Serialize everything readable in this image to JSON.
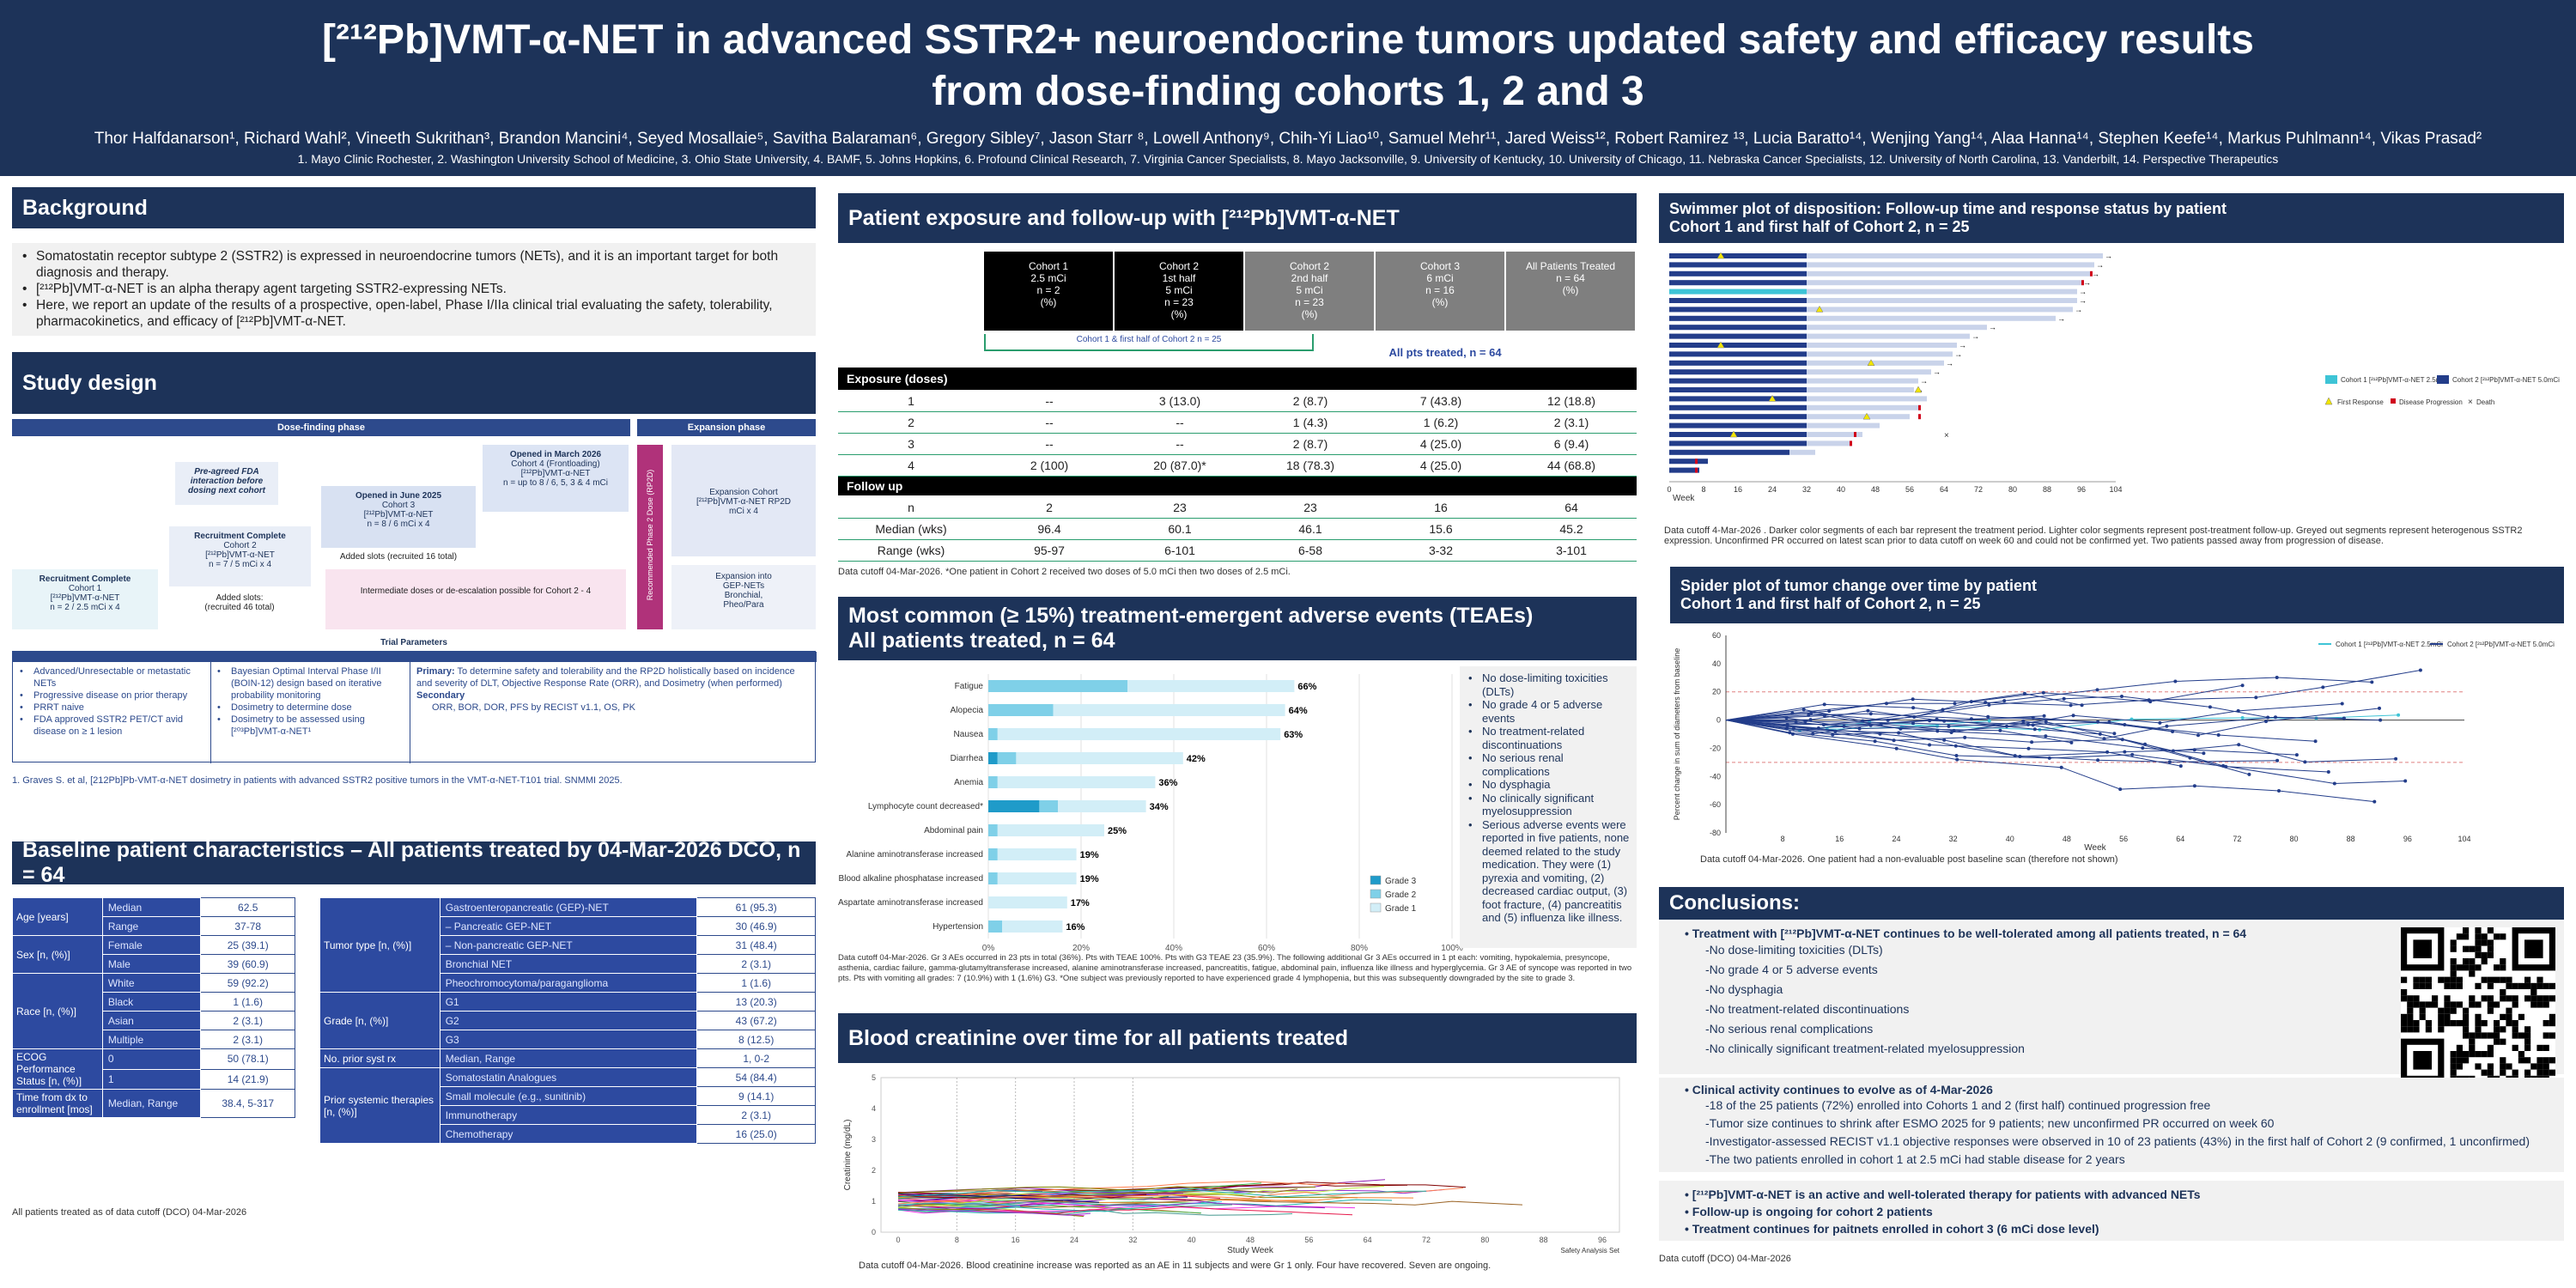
{
  "header": {
    "title_line1": "[²¹²Pb]VMT-α-NET in advanced SSTR2+ neuroendocrine tumors updated safety and efficacy results",
    "title_line2": "from dose-finding cohorts 1, 2 and 3",
    "authors": "Thor Halfdanarson¹, Richard Wahl², Vineeth Sukrithan³, Brandon Mancini⁴, Seyed Mosallaie⁵, Savitha Balaraman⁶, Gregory Sibley⁷, Jason Starr ⁸, Lowell Anthony⁹, Chih-Yi Liao¹⁰, Samuel Mehr¹¹, Jared Weiss¹², Robert Ramirez ¹³, Lucia Baratto¹⁴, Wenjing Yang¹⁴, Alaa Hanna¹⁴, Stephen Keefe¹⁴, Markus Puhlmann¹⁴, Vikas Prasad²",
    "affiliations": "1. Mayo Clinic Rochester, 2. Washington University School of Medicine, 3. Ohio State University, 4. BAMF, 5. Johns Hopkins, 6. Profound Clinical Research, 7. Virginia Cancer Specialists, 8. Mayo Jacksonville, 9. University of Kentucky, 10. University of Chicago, 11. Nebraska Cancer Specialists, 12. University of North Carolina, 13. Vanderbilt, 14. Perspective Therapeutics"
  },
  "background": {
    "title": "Background",
    "bullets": [
      "Somatostatin receptor subtype 2 (SSTR2) is expressed in neuroendocrine tumors (NETs), and it is an important target for both diagnosis and therapy.",
      "[²¹²Pb]VMT-α-NET is an alpha therapy agent targeting SSTR2-expressing NETs.",
      "Here, we report an update of the results of a prospective, open-label, Phase I/IIa clinical trial evaluating the safety, tolerability, pharmacokinetics, and efficacy of [²¹²Pb]VMT-α-NET."
    ]
  },
  "study_design": {
    "title": "Study design",
    "dose_finding": "Dose-finding phase",
    "expansion": "Expansion phase",
    "pre_agreed": "Pre-agreed FDA interaction before dosing next cohort",
    "c1": {
      "h": "Recruitment Complete",
      "l1": "Cohort 1",
      "l2": "[²¹²Pb]VMT-α-NET",
      "l3": "n = 2 / 2.5 mCi x 4"
    },
    "c2": {
      "h": "Recruitment Complete",
      "l1": "Cohort 2",
      "l2": "[²¹²Pb]VMT-α-NET",
      "l3": "n = 7 / 5 mCi x 4",
      "note1": "Added slots:",
      "note2": "(recruited 46 total)"
    },
    "c3": {
      "h": "Opened in June 2025",
      "l1": "Cohort 3",
      "l2": "[²¹²Pb]VMT-α-NET",
      "l3": "n = 8 / 6 mCi x 4",
      "note": "Added slots (recruited 16 total)"
    },
    "c4": {
      "h": "Opened in March 2026",
      "l1": "Cohort 4 (Frontloading)",
      "l2": "[²¹²Pb]VMT-α-NET",
      "l3": "n = up to 8 / 6, 5, 3 & 4 mCi"
    },
    "intermediate": "Intermediate doses or de-escalation possible for Cohort 2 - 4",
    "rp2d": "Recommended Phase 2 Dose (RP2D)",
    "exp_cohort": "Expansion Cohort [²¹²Pb]VMT-α-NET RP2D mCi x 4",
    "exp_into": "Expansion into GEP-NETs Bronchial, Pheo/Para",
    "trial_params": "Trial Parameters",
    "col1": [
      "Advanced/Unresectable or metastatic NETs",
      "Progressive disease on prior therapy",
      "PRRT naive",
      "FDA approved SSTR2 PET/CT avid disease on ≥ 1 lesion"
    ],
    "col2": [
      "Bayesian Optimal Interval Phase I/II (BOIN-12) design based on iterative probability monitoring",
      "Dosimetry to determine dose",
      "Dosimetry to be assessed using [²⁰³Pb]VMT-α-NET¹"
    ],
    "primary_label": "Primary:",
    "primary": "To determine safety and tolerability and the RP2D holistically based on incidence and severity of DLT, Objective Response Rate (ORR), and Dosimetry (when performed)",
    "secondary_label": "Secondary",
    "secondary": "ORR, BOR, DOR, PFS by RECIST v1.1, OS, PK",
    "footnote": "1. Graves S. et al, [212Pb]Pb-VMT-α-NET dosimetry in patients with advanced SSTR2 positive tumors in the VMT-α-NET-T101 trial. SNMMI 2025."
  },
  "baseline": {
    "title": "Baseline patient characteristics – All patients treated by 04-Mar-2026 DCO, n = 64",
    "left": [
      [
        "Age [years]",
        "Median",
        "62.5"
      ],
      [
        "",
        "Range",
        "37-78"
      ],
      [
        "Sex [n, (%)]",
        "Female",
        "25 (39.1)"
      ],
      [
        "",
        "Male",
        "39 (60.9)"
      ],
      [
        "Race [n, (%)]",
        "White",
        "59 (92.2)"
      ],
      [
        "",
        "Black",
        "1 (1.6)"
      ],
      [
        "",
        "Asian",
        "2 (3.1)"
      ],
      [
        "",
        "Multiple",
        "2 (3.1)"
      ],
      [
        "ECOG Performance Status [n, (%)]",
        "0",
        "50 (78.1)"
      ],
      [
        "",
        "1",
        "14 (21.9)"
      ],
      [
        "Time from dx to enrollment [mos]",
        "Median, Range",
        "38.4, 5-317"
      ]
    ],
    "right": [
      [
        "Tumor type [n, (%)]",
        "Gastroenteropancreatic (GEP)-NET",
        "61 (95.3)"
      ],
      [
        "",
        "–   Pancreatic GEP-NET",
        "30 (46.9)"
      ],
      [
        "",
        "–   Non-pancreatic GEP-NET",
        "31 (48.4)"
      ],
      [
        "",
        "Bronchial NET",
        "2 (3.1)"
      ],
      [
        "",
        "Pheochromocytoma/paraganglioma",
        "1 (1.6)"
      ],
      [
        "Grade [n, (%)]",
        "G1",
        "13 (20.3)"
      ],
      [
        "",
        "G2",
        "43 (67.2)"
      ],
      [
        "",
        "G3",
        "8 (12.5)"
      ],
      [
        "No. prior syst rx",
        "Median, Range",
        "1, 0-2"
      ],
      [
        "Prior systemic therapies [n, (%)]",
        "Somatostatin Analogues",
        "54 (84.4)"
      ],
      [
        "",
        "Small molecule (e.g., sunitinib)",
        "9 (14.1)"
      ],
      [
        "",
        "Immunotherapy",
        "2 (3.1)"
      ],
      [
        "",
        "Chemotherapy",
        "16 (25.0)"
      ]
    ],
    "footnote": "All patients treated as of data cutoff (DCO) 04-Mar-2026"
  },
  "exposure": {
    "title": "Patient exposure and follow-up with [²¹²Pb]VMT-α-NET",
    "cols": [
      [
        "Cohort 1",
        "2.5 mCi",
        "n = 2",
        "(%)"
      ],
      [
        "Cohort 2",
        "1st half",
        "5 mCi",
        "n = 23",
        "(%)"
      ],
      [
        "Cohort 2",
        "2nd half",
        "5 mCi",
        "n = 23",
        "(%)"
      ],
      [
        "Cohort 3",
        "6 mCi",
        "n = 16",
        "(%)"
      ],
      [
        "All Patients Treated",
        "n = 64",
        "(%)"
      ]
    ],
    "bracket_left": "Cohort 1 & first half of Cohort 2 n = 25",
    "bracket_right": "All pts treated, n = 64",
    "exposure_label": "Exposure (doses)",
    "rows": [
      [
        "1",
        "--",
        "3 (13.0)",
        "2 (8.7)",
        "7 (43.8)",
        "12 (18.8)"
      ],
      [
        "2",
        "--",
        "--",
        "1 (4.3)",
        "1 (6.2)",
        "2 (3.1)"
      ],
      [
        "3",
        "--",
        "--",
        "2 (8.7)",
        "4 (25.0)",
        "6 (9.4)"
      ],
      [
        "4",
        "2 (100)",
        "20 (87.0)*",
        "18 (78.3)",
        "4 (25.0)",
        "44 (68.8)"
      ]
    ],
    "followup_label": "Follow up",
    "frows": [
      [
        "n",
        "2",
        "23",
        "23",
        "16",
        "64"
      ],
      [
        "Median (wks)",
        "96.4",
        "60.1",
        "46.1",
        "15.6",
        "45.2"
      ],
      [
        "Range (wks)",
        "95-97",
        "6-101",
        "6-58",
        "3-32",
        "3-101"
      ]
    ],
    "footnote": "Data cutoff 04-Mar-2026. *One patient in Cohort 2 received two doses of 5.0 mCi then two doses of 2.5 mCi."
  },
  "teae": {
    "title1": "Most common (≥ 15%) treatment-emergent adverse events (TEAEs)",
    "title2": "All patients treated, n = 64",
    "chart_data": {
      "type": "bar",
      "orientation": "horizontal",
      "stacked": true,
      "categories": [
        "Fatigue",
        "Alopecia",
        "Nausea",
        "Diarrhea",
        "Anemia",
        "Lymphocyte count decreased*",
        "Abdominal pain",
        "Alanine aminotransferase increased",
        "Blood alkaline phosphatase increased",
        "Aspartate aminotransferase increased",
        "Hypertension"
      ],
      "totals_label": [
        "66%",
        "64%",
        "63%",
        "42%",
        "36%",
        "34%",
        "25%",
        "19%",
        "19%",
        "17%",
        "16%"
      ],
      "series": [
        {
          "name": "Grade 3",
          "color": "#1f9bc9",
          "values": [
            0,
            0,
            0,
            2,
            0,
            11,
            0,
            0,
            0,
            0,
            0
          ]
        },
        {
          "name": "Grade 2",
          "color": "#7fd0e8",
          "values": [
            30,
            14,
            2,
            4,
            2,
            4,
            2,
            2,
            2,
            0,
            3
          ]
        },
        {
          "name": "Grade 1",
          "color": "#d2eef7",
          "values": [
            36,
            50,
            61,
            36,
            34,
            19,
            23,
            17,
            17,
            17,
            13
          ]
        }
      ],
      "xticks": [
        "0%",
        "20%",
        "40%",
        "60%",
        "80%",
        "100%"
      ],
      "xlim": [
        0,
        100
      ]
    },
    "bullets": [
      "No dose-limiting toxicities (DLTs)",
      "No grade 4 or 5 adverse events",
      "No treatment-related discontinuations",
      "No serious renal complications",
      "No dysphagia",
      "No clinically significant myelosuppression",
      "Serious adverse events were reported in five patients, none deemed related to the study medication. They were (1) pyrexia and vomiting, (2) decreased cardiac output, (3) foot fracture, (4) pancreatitis and (5) influenza like illness."
    ],
    "footnote": "Data cutoff 04-Mar-2026. Gr 3 AEs occurred in 23 pts in total (36%). Pts with TEAE 100%. Pts with G3 TEAE 23 (35.9%). The following additional Gr 3 AEs occurred in 1 pt each: vomiting, hypokalemia, presyncope, asthenia, cardiac failure, gamma-glutamyltransferase increased, alanine aminotransferase increased, pancreatitis, fatigue, abdominal pain, influenza like illness and hyperglycemia. Gr 3 AE of syncope was reported in two pts. Pts with vomiting all grades: 7 (10.9%) with 1 (1.6%) G3. *One subject was previously reported to have experienced grade 4 lymphopenia, but this was subsequently downgraded by the site to grade 3."
  },
  "creat": {
    "title": "Blood creatinine over time for all patients treated",
    "ylabel": "Creatinine (mg/dL)",
    "xlabel": "Study Week",
    "xticks": [
      "0",
      "8",
      "16",
      "24",
      "32",
      "40",
      "48",
      "56",
      "64",
      "72",
      "80",
      "88",
      "96"
    ],
    "yticks": [
      "0",
      "1",
      "2",
      "3",
      "4",
      "5"
    ],
    "set_label": "Safety Analysis Set",
    "footnote": "Data cutoff 04-Mar-2026. Blood creatinine increase was reported as an AE in 11 subjects and were Gr 1 only.  Four have recovered.  Seven are ongoing."
  },
  "swimmer": {
    "title1": "Swimmer plot of disposition: Follow-up time and response status by patient",
    "title2": "Cohort 1 and first half of Cohort 2, n = 25",
    "chart_data": {
      "type": "bar",
      "orientation": "horizontal",
      "xlabel": "Week",
      "xticks": [
        "0",
        "8",
        "16",
        "24",
        "32",
        "40",
        "48",
        "56",
        "64",
        "72",
        "80",
        "88",
        "96",
        "104"
      ],
      "series": [
        {
          "name": "Cohort 1 [²¹²Pb]VMT-α-NET 2.5mCi",
          "color": "#3ec4d6"
        },
        {
          "name": "Cohort 2 [²¹²Pb]VMT-α-NET 5.0mCi",
          "color": "#233d8a"
        }
      ],
      "treatment": [
        32,
        32,
        32,
        32,
        32,
        32,
        32,
        32,
        32,
        32,
        32,
        32,
        32,
        32,
        32,
        32,
        32,
        32,
        32,
        32,
        32,
        32,
        28,
        9,
        7
      ],
      "total": [
        101,
        99,
        98,
        96,
        95,
        95,
        94,
        90,
        74,
        70,
        67,
        66,
        64,
        61,
        58,
        57,
        60,
        58,
        56,
        49,
        45,
        42,
        34,
        7,
        7
      ],
      "legend": [
        "First Response",
        "Disease Progression",
        "Death"
      ]
    },
    "footnote": "Data cutoff 4-Mar-2026 . Darker color segments of each bar represent the treatment period. Lighter color segments represent post-treatment follow-up. Greyed out segments represent heterogenous SSTR2 expression. Unconfirmed PR occurred on latest scan prior to data cutoff on week 60 and could not be confirmed yet. Two patients passed away from progression of disease."
  },
  "spider": {
    "title1": "Spider plot of tumor change over time by patient",
    "title2": "Cohort 1 and first half of Cohort 2, n = 25",
    "ylabel": "Percent change in sum of diameters from baseline",
    "xlabel": "Week",
    "yticks": [
      "60",
      "40",
      "20",
      "0",
      "-20",
      "-40",
      "-60",
      "-80"
    ],
    "xticks": [
      "8",
      "16",
      "24",
      "32",
      "40",
      "48",
      "56",
      "64",
      "72",
      "80",
      "88",
      "96",
      "104"
    ],
    "legend": [
      "Cohort 1 [²¹²Pb]VMT-α-NET 2.5mCi",
      "Cohort 2 [²¹²Pb]VMT-α-NET 5.0mCi"
    ],
    "footnote": "Data cutoff 04-Mar-2026. One patient had a non-evaluable post baseline scan (therefore not shown)"
  },
  "conclusions": {
    "title": "Conclusions:",
    "h1": "Treatment with [²¹²Pb]VMT-α-NET continues to be well-tolerated among all patients treated, n = 64",
    "s1": [
      "No dose-limiting toxicities (DLTs)",
      "No grade 4 or 5 adverse events",
      "No dysphagia",
      "No treatment-related discontinuations",
      "No serious renal complications",
      "No clinically significant treatment-related myelosuppression"
    ],
    "h2": "Clinical activity continues to evolve as of 4-Mar-2026",
    "s2": [
      "18 of the 25 patients (72%) enrolled into Cohorts 1 and 2 (first half) continued progression free",
      "Tumor size continues to shrink after ESMO 2025 for 9 patients; new unconfirmed PR occurred on week 60",
      "Investigator-assessed RECIST v1.1 objective responses were observed in 10 of 23 patients (43%) in the first half of Cohort 2 (9 confirmed, 1 unconfirmed)",
      "The two patients enrolled in cohort 1 at 2.5 mCi had stable disease for 2 years"
    ],
    "b3": [
      "[²¹²Pb]VMT-α-NET is an active and well-tolerated therapy for patients with advanced NETs",
      "Follow-up is ongoing for cohort 2 patients",
      "Treatment continues for paitnets enrolled in cohort 3 (6 mCi dose level)"
    ],
    "footnote": "Data cutoff (DCO) 04-Mar-2026"
  },
  "colors": {
    "navy": "#1d3359",
    "teal": "#3ec4d6",
    "cohort_blue": "#233d8a",
    "pink": "#b0327a"
  }
}
